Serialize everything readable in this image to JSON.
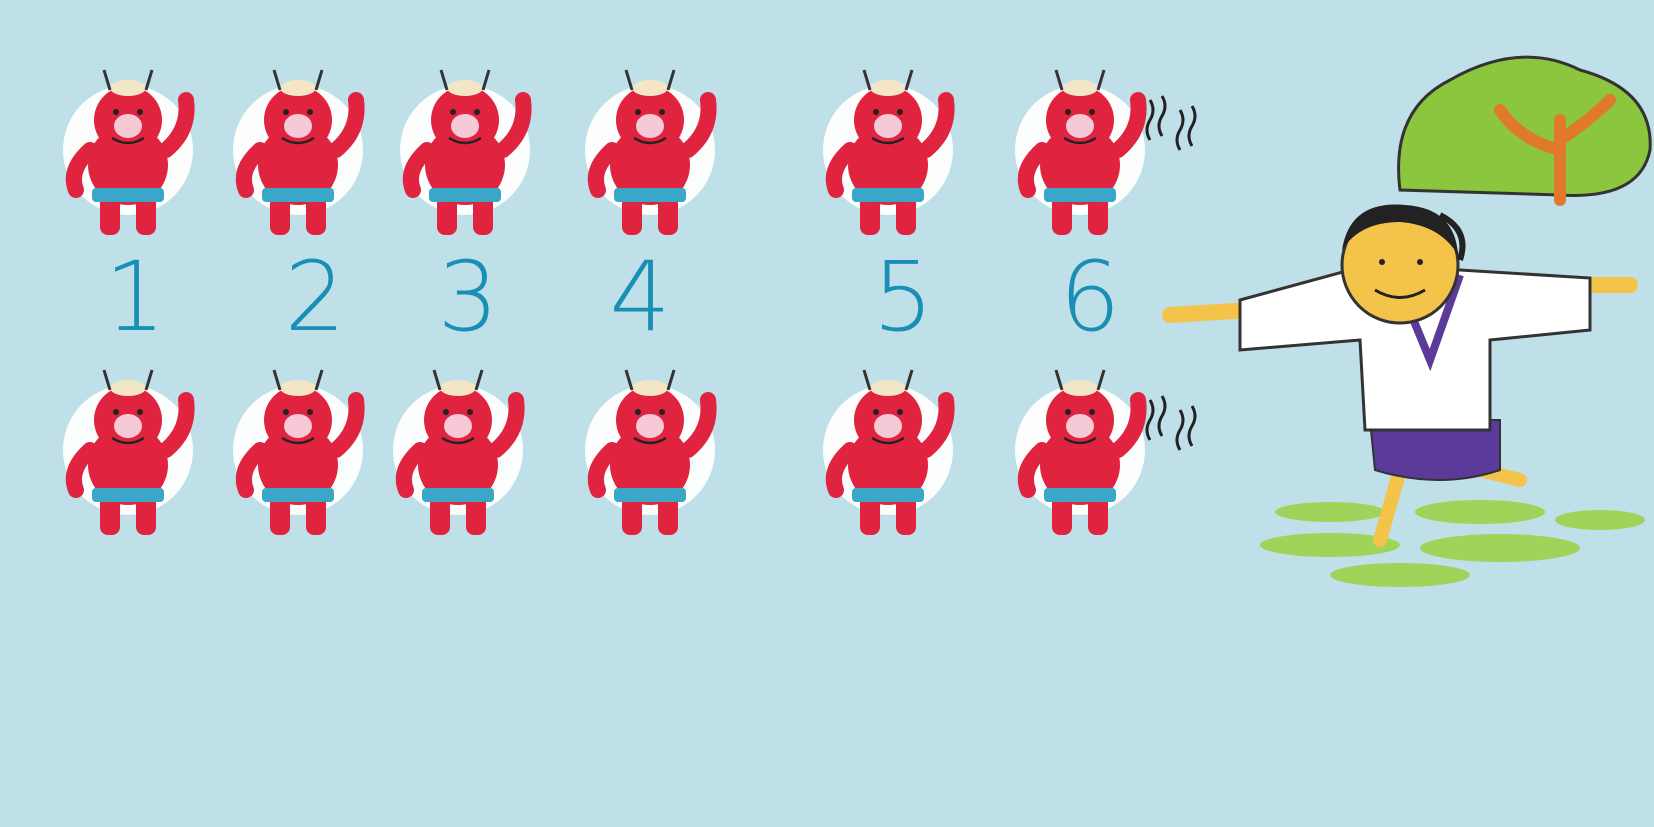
{
  "numbers": [
    "1",
    "2",
    "3",
    "4",
    "5",
    "6"
  ],
  "colors": {
    "background": "#bfe0e8",
    "number_ink": "#1a8fb5",
    "oni_skin": "#e0233f",
    "oni_loincloth": "#3aa6c8",
    "halo": "#ffffff",
    "tree_foliage": "#8cc63f",
    "tree_trunk": "#e0792a",
    "boy_robe": "#ffffff",
    "boy_trim": "#5b3a9a",
    "boy_skin": "#f4c34a",
    "grass": "#9fd35a"
  },
  "figures": {
    "oni_rows": 2,
    "oni_per_row": 6,
    "character": "boy-with-arms-outstretched"
  }
}
